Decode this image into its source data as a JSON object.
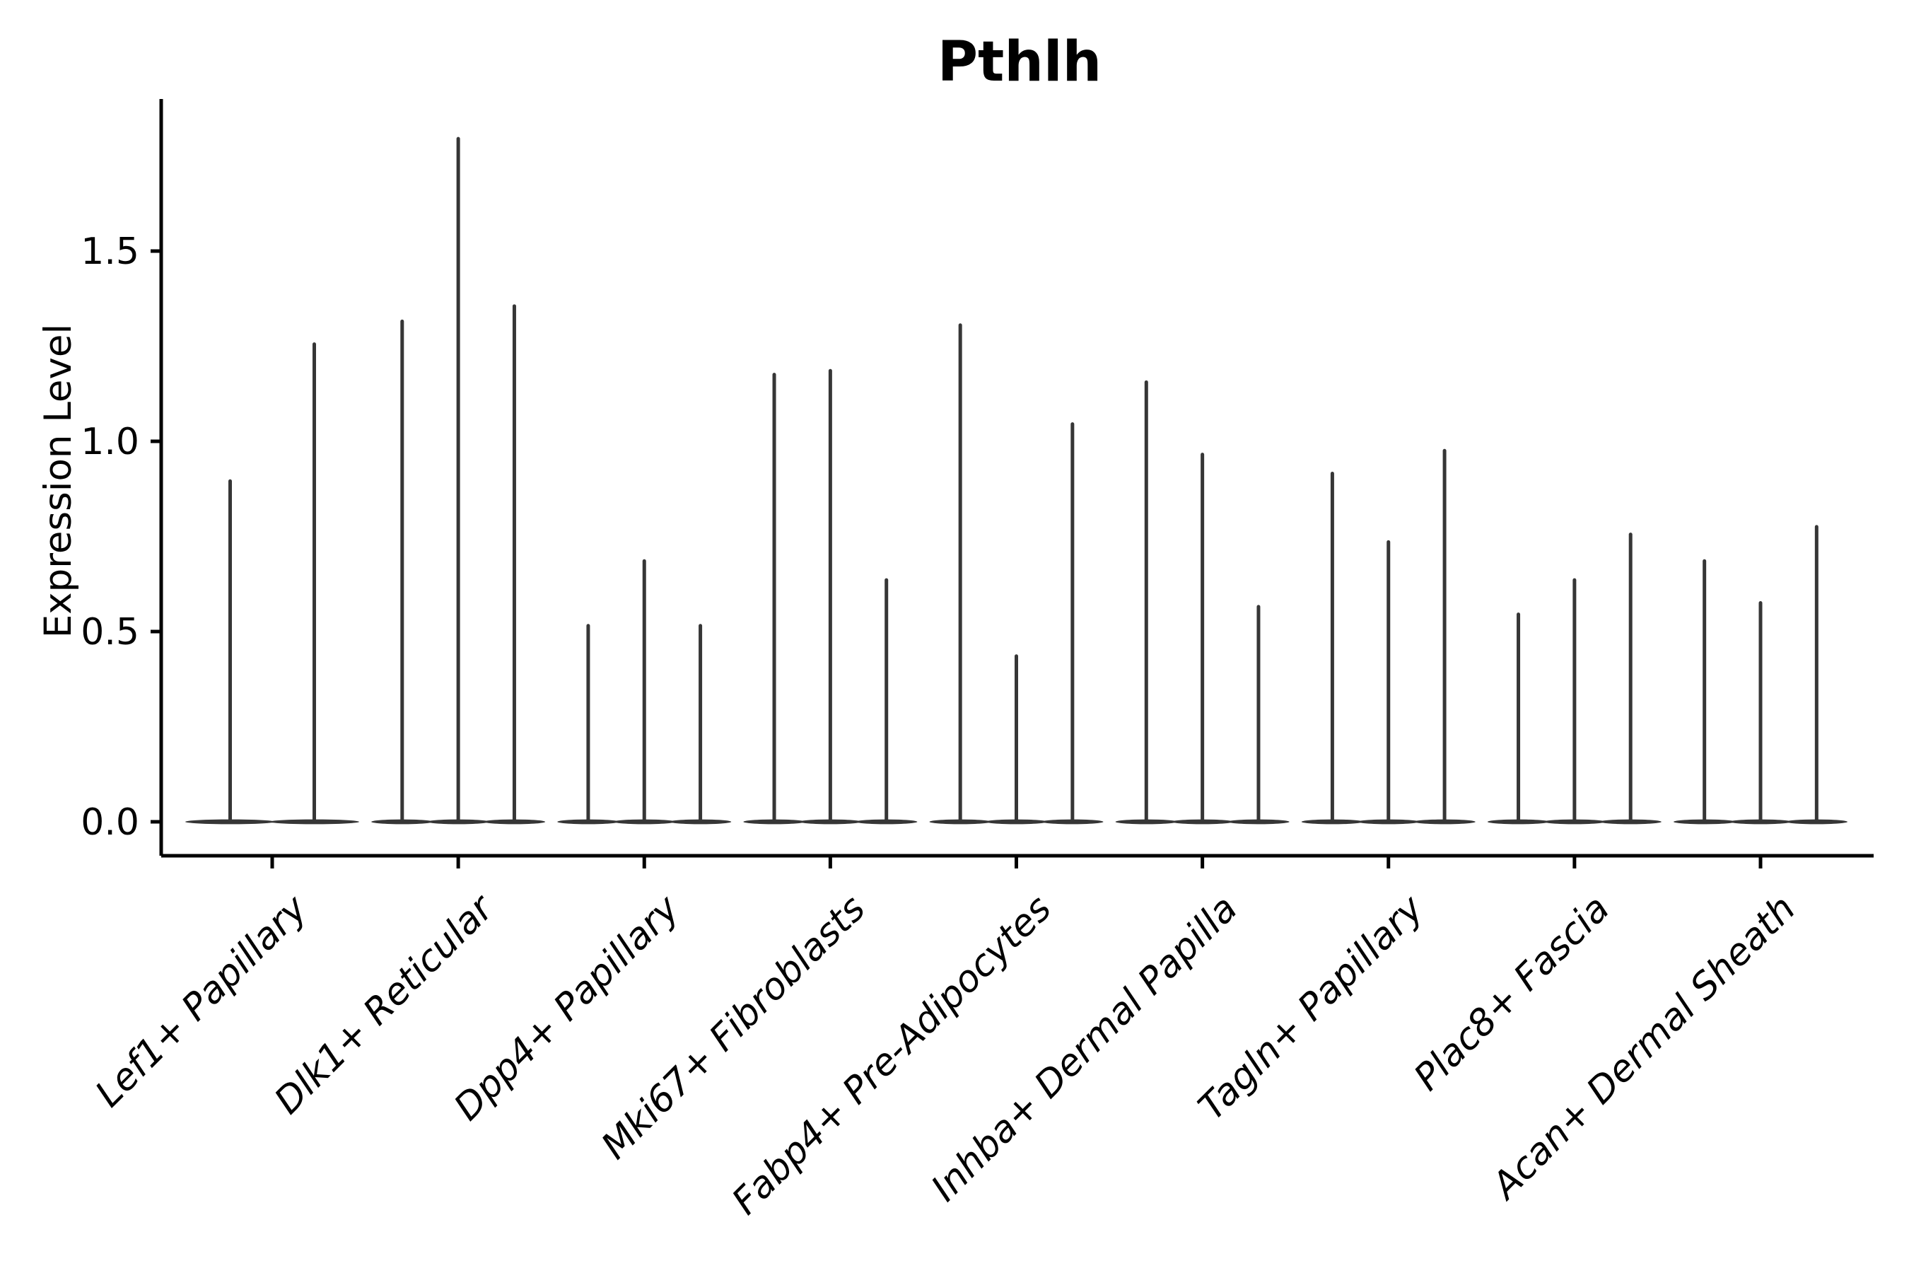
{
  "title": "Pthlh",
  "ylabel": "Expression Level",
  "chart_data": {
    "type": "violin",
    "title": "Pthlh",
    "xlabel": "",
    "ylabel": "Expression Level",
    "ylim": [
      -0.09,
      1.9
    ],
    "ytick_values": [
      0.0,
      0.5,
      1.0,
      1.5
    ],
    "ytick_labels": [
      "0.0",
      "0.5",
      "1.0",
      "1.5"
    ],
    "grid": false,
    "legend": "none",
    "violin_color": "#363636",
    "axis_color": "#000000",
    "categories": [
      "Lef1+ Papillary",
      "Dlk1+ Reticular",
      "Dpp4+ Papillary",
      "Mki67+ Fibroblasts",
      "Fabp4+ Pre-Adipocytes",
      "Inhba+ Dermal Papilla",
      "Tagln+ Papillary",
      "Plac8+ Fascia",
      "Acan+ Dermal Sheath"
    ],
    "groups": [
      {
        "category": "Lef1+ Papillary",
        "violin_max": [
          0.9,
          1.26
        ]
      },
      {
        "category": "Dlk1+ Reticular",
        "violin_max": [
          1.32,
          1.8,
          1.36
        ]
      },
      {
        "category": "Dpp4+ Papillary",
        "violin_max": [
          0.52,
          0.69,
          0.52
        ]
      },
      {
        "category": "Mki67+ Fibroblasts",
        "violin_max": [
          1.18,
          1.19,
          0.64
        ]
      },
      {
        "category": "Fabp4+ Pre-Adipocytes",
        "violin_max": [
          1.31,
          0.44,
          1.05
        ]
      },
      {
        "category": "Inhba+ Dermal Papilla",
        "violin_max": [
          1.16,
          0.97,
          0.57
        ]
      },
      {
        "category": "Tagln+ Papillary",
        "violin_max": [
          0.92,
          0.74,
          0.98
        ]
      },
      {
        "category": "Plac8+ Fascia",
        "violin_max": [
          0.55,
          0.64,
          0.76
        ]
      },
      {
        "category": "Acan+ Dermal Sheath",
        "violin_max": [
          0.69,
          0.58,
          0.78
        ]
      }
    ],
    "description": "All violins collapse to a wide flat base at expression 0 with a thin needle up to the max expression value."
  }
}
